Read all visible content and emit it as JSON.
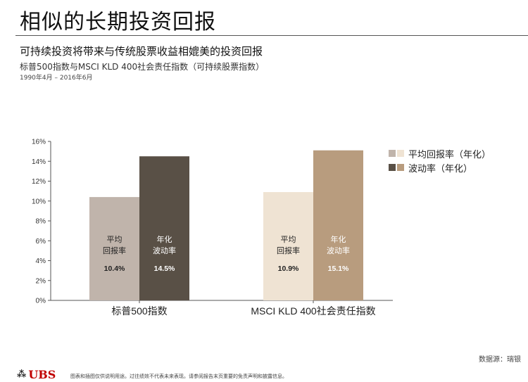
{
  "header": {
    "title": "相似的长期投资回报",
    "subtitle": "可持续投资将带来与传统股票收益相媲美的投资回报",
    "series_title": "标普500指数与MSCI KLD 400社会责任指数（可持续股票指数）",
    "date_range": "1990年4月 – 2016年6月"
  },
  "legend": {
    "items": [
      {
        "label": "平均回报率（年化）",
        "colors": [
          "#c0b4ab",
          "#efe3d3"
        ]
      },
      {
        "label": "波动率（年化）",
        "colors": [
          "#595046",
          "#b89c7e"
        ]
      }
    ]
  },
  "chart_data": {
    "type": "bar",
    "categories": [
      "标普500指数",
      "MSCI KLD 400社会责任指数"
    ],
    "series": [
      {
        "name": "平均回报率（年化）",
        "values": [
          10.4,
          10.9
        ],
        "colors": [
          "#c0b4ab",
          "#efe3d3"
        ],
        "bar_labels": [
          [
            "平均",
            "回报率"
          ],
          [
            "平均",
            "回报率"
          ]
        ],
        "value_labels": [
          "10.4%",
          "10.9%"
        ]
      },
      {
        "name": "波动率（年化）",
        "values": [
          14.5,
          15.1
        ],
        "colors": [
          "#595046",
          "#b89c7e"
        ],
        "bar_labels": [
          [
            "年化",
            "波动率"
          ],
          [
            "年化",
            "波动率"
          ]
        ],
        "value_labels": [
          "14.5%",
          "15.1%"
        ]
      }
    ],
    "ylim": [
      0,
      16
    ],
    "yticks": [
      0,
      2,
      4,
      6,
      8,
      10,
      12,
      14,
      16
    ],
    "ytick_labels": [
      "0%",
      "2%",
      "4%",
      "6%",
      "8%",
      "10%",
      "12%",
      "14%",
      "16%"
    ],
    "grid": false,
    "legend_position": "top-right"
  },
  "footer": {
    "source": "数据源：瑞银",
    "logo_text": "UBS",
    "disclaimer": "图表和插图仅供说明用途。过往绩效不代表未来表现。请参阅报告末页重要的免责声明和披露信息。"
  }
}
